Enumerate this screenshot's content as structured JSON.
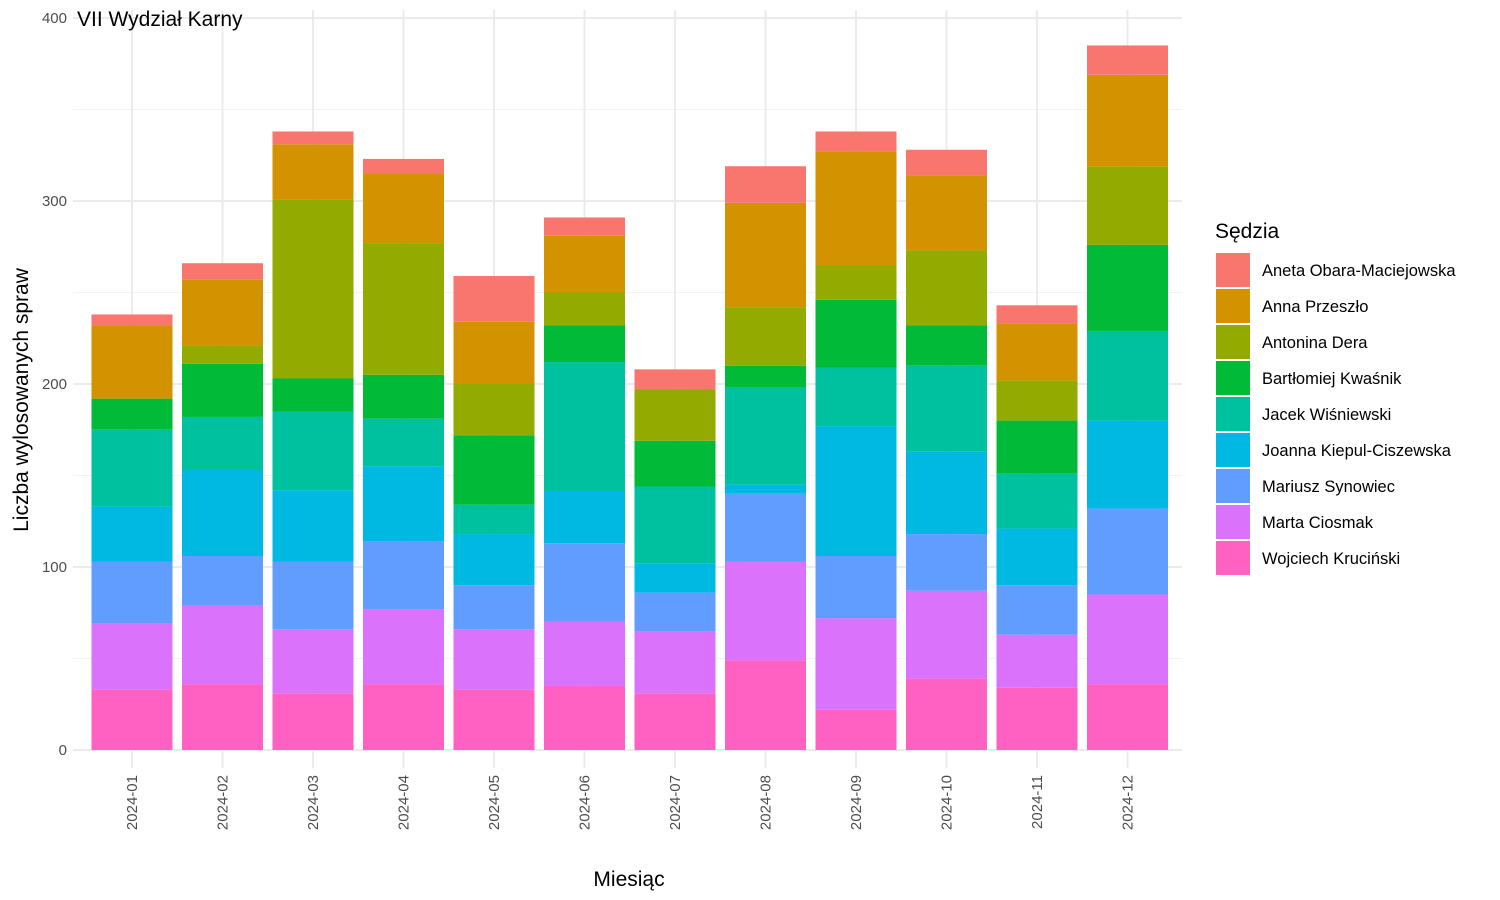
{
  "chart_data": {
    "type": "bar",
    "stacked": true,
    "title": "VII Wydział Karny",
    "xlabel": "Miesiąc",
    "ylabel": "Liczba wylosowanych spraw",
    "ylim": [
      0,
      400
    ],
    "yticks": [
      0,
      100,
      200,
      300,
      400
    ],
    "grid": true,
    "legend_position": "right",
    "legend_title": "Sędzia",
    "categories": [
      "2024-01",
      "2024-02",
      "2024-03",
      "2024-04",
      "2024-05",
      "2024-06",
      "2024-07",
      "2024-08",
      "2024-09",
      "2024-10",
      "2024-11",
      "2024-12"
    ],
    "series": [
      {
        "name": "Wojciech Kruciński",
        "color": "#FF61C3",
        "values": [
          33,
          36,
          31,
          36,
          33,
          35,
          31,
          49,
          22,
          39,
          34,
          36
        ]
      },
      {
        "name": "Marta Ciosmak",
        "color": "#DB72FB",
        "values": [
          36,
          43,
          35,
          41,
          33,
          35,
          34,
          54,
          50,
          48,
          29,
          49
        ]
      },
      {
        "name": "Mariusz Synowiec",
        "color": "#619CFF",
        "values": [
          34,
          27,
          37,
          37,
          24,
          43,
          21,
          37,
          34,
          31,
          27,
          47
        ]
      },
      {
        "name": "Joanna Kiepul-Ciszewska",
        "color": "#00B9E3",
        "values": [
          30,
          47,
          39,
          41,
          28,
          28,
          16,
          5,
          71,
          45,
          31,
          48
        ]
      },
      {
        "name": "Jacek Wiśniewski",
        "color": "#00C19F",
        "values": [
          42,
          29,
          43,
          26,
          16,
          71,
          42,
          53,
          32,
          47,
          30,
          49
        ]
      },
      {
        "name": "Bartłomiej Kwaśnik",
        "color": "#00BA38",
        "values": [
          17,
          29,
          18,
          24,
          38,
          20,
          25,
          12,
          37,
          22,
          29,
          47
        ]
      },
      {
        "name": "Antonina Dera",
        "color": "#93AA00",
        "values": [
          0,
          10,
          98,
          72,
          28,
          18,
          28,
          32,
          19,
          41,
          22,
          43
        ]
      },
      {
        "name": "Anna Przeszło",
        "color": "#D39200",
        "values": [
          40,
          36,
          30,
          38,
          34,
          31,
          0,
          57,
          62,
          41,
          31,
          50
        ]
      },
      {
        "name": "Aneta Obara-Maciejowska",
        "color": "#F8766D",
        "values": [
          6,
          9,
          7,
          8,
          25,
          10,
          11,
          20,
          11,
          14,
          10,
          16
        ]
      }
    ]
  }
}
